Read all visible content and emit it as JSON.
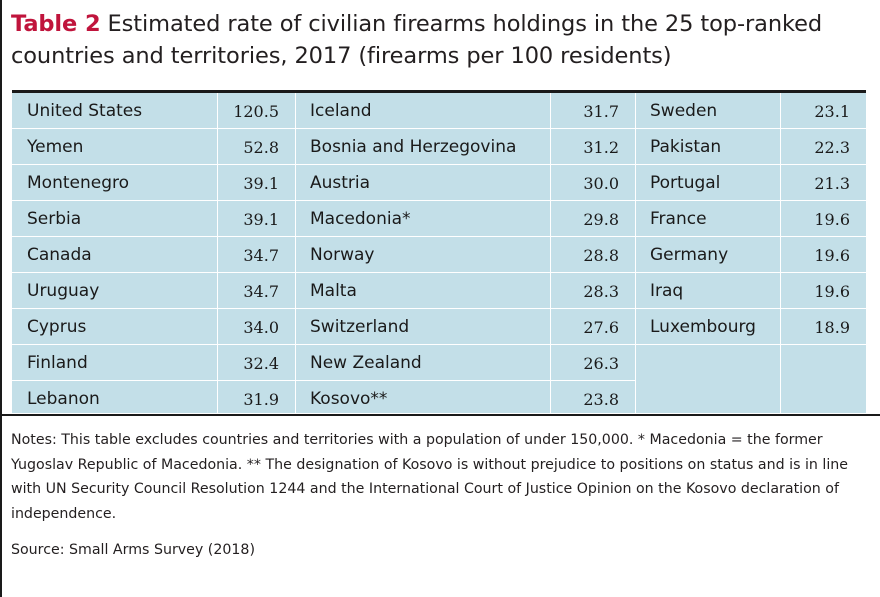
{
  "title": {
    "label": "Table 2",
    "text": " Estimated rate of civilian firearms holdings in the 25 top-ranked countries and territories, 2017 (firearms per 100 residents)"
  },
  "table": {
    "col1": [
      {
        "country": "United States",
        "rate": "120.5"
      },
      {
        "country": "Yemen",
        "rate": "52.8"
      },
      {
        "country": "Montenegro",
        "rate": "39.1"
      },
      {
        "country": "Serbia",
        "rate": "39.1"
      },
      {
        "country": "Canada",
        "rate": "34.7"
      },
      {
        "country": "Uruguay",
        "rate": "34.7"
      },
      {
        "country": "Cyprus",
        "rate": "34.0"
      },
      {
        "country": "Finland",
        "rate": "32.4"
      },
      {
        "country": "Lebanon",
        "rate": "31.9"
      }
    ],
    "col2": [
      {
        "country": "Iceland",
        "rate": "31.7"
      },
      {
        "country": "Bosnia and Herzegovina",
        "rate": "31.2"
      },
      {
        "country": "Austria",
        "rate": "30.0"
      },
      {
        "country": "Macedonia*",
        "rate": "29.8"
      },
      {
        "country": "Norway",
        "rate": "28.8"
      },
      {
        "country": "Malta",
        "rate": "28.3"
      },
      {
        "country": "Switzerland",
        "rate": "27.6"
      },
      {
        "country": "New Zealand",
        "rate": "26.3"
      },
      {
        "country": "Kosovo**",
        "rate": "23.8"
      }
    ],
    "col3": [
      {
        "country": "Sweden",
        "rate": "23.1"
      },
      {
        "country": "Pakistan",
        "rate": "22.3"
      },
      {
        "country": "Portugal",
        "rate": "21.3"
      },
      {
        "country": "France",
        "rate": "19.6"
      },
      {
        "country": "Germany",
        "rate": "19.6"
      },
      {
        "country": "Iraq",
        "rate": "19.6"
      },
      {
        "country": "Luxembourg",
        "rate": "18.9"
      }
    ]
  },
  "notes": "Notes: This table excludes countries and territories with a population of under 150,000. * Macedonia = the former Yugoslav Republic of Macedonia. ** The designation of Kosovo is without prejudice to positions on status and is in line with UN Security Council Resolution 1244 and the International Court of Justice Opinion on the Kosovo declaration of independence.",
  "source": "Source: Small Arms Survey (2018)"
}
